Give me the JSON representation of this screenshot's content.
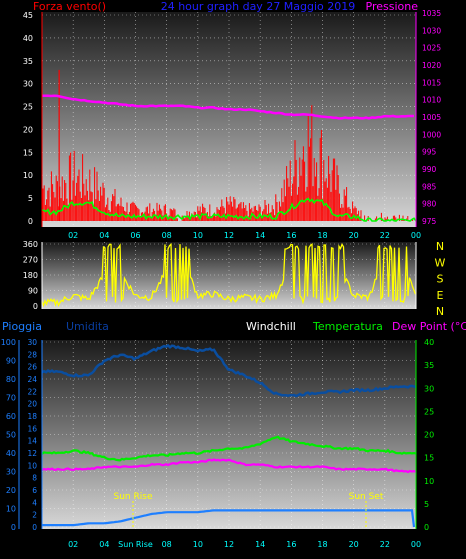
{
  "header": {
    "left_label": "Forza vento()",
    "center_label": "24 hour graph day  27 Maggio 2019",
    "right_label": "Pressione"
  },
  "colors": {
    "background": "#000000",
    "wind": "#ff0000",
    "gust": "#00ff00",
    "pressure": "#ff00ff",
    "direction": "#ffff00",
    "humidity": "#0a4ea0",
    "rain": "#1e7fff",
    "temperature": "#00ee00",
    "dewpoint": "#ff00ff",
    "windchill": "#ffffff",
    "time_ticks": "#00ffff"
  },
  "time_ticks": [
    "02",
    "04",
    "06",
    "08",
    "10",
    "12",
    "14",
    "16",
    "18",
    "20",
    "22",
    "00"
  ],
  "panel1": {
    "left_axis": [
      "45",
      "40",
      "35",
      "30",
      "25",
      "20",
      "15",
      "10",
      "5",
      "0"
    ],
    "right_axis": [
      "1035",
      "1030",
      "1025",
      "1020",
      "1015",
      "1010",
      "1005",
      "1000",
      "995",
      "990",
      "985",
      "980",
      "975"
    ]
  },
  "panel2": {
    "left_axis": [
      "360",
      "270",
      "180",
      "90",
      "0"
    ],
    "compass": [
      "N",
      "W",
      "S",
      "E",
      "N"
    ]
  },
  "panel3": {
    "legend": {
      "rain": "Pioggia",
      "humidity": "Umidita",
      "windchill": "Windchill",
      "temperature": "Temperatura",
      "dewpoint": "Dew Point (°C)"
    },
    "rain_axis": [
      "100",
      "90",
      "80",
      "70",
      "60",
      "50",
      "40",
      "30",
      "20",
      "10",
      "0"
    ],
    "humidity_axis": [
      "30",
      "28",
      "26",
      "24",
      "22",
      "20",
      "18",
      "16",
      "14",
      "12",
      "10",
      "8",
      "6",
      "4",
      "2",
      "0"
    ],
    "temp_axis": [
      "40",
      "35",
      "30",
      "25",
      "20",
      "15",
      "10",
      "5",
      "0"
    ],
    "sun_rise": "Sun Rise",
    "sun_set": "Sun Set",
    "bottom_ticks": [
      "02",
      "04",
      "Sun Rise",
      "08",
      "10",
      "12",
      "14",
      "16",
      "18",
      "20",
      "22",
      "00"
    ]
  },
  "chart_data": [
    {
      "type": "line",
      "title": "24 hour graph day  27 Maggio 2019",
      "xlabel": "",
      "ylabel": "Forza vento()",
      "ylabel_right": "Pressione",
      "x": [
        "01",
        "02",
        "03",
        "04",
        "05",
        "06",
        "07",
        "08",
        "09",
        "10",
        "11",
        "12",
        "13",
        "14",
        "15",
        "16",
        "17",
        "18",
        "19",
        "20",
        "21",
        "22",
        "23",
        "00"
      ],
      "ylim": [
        0,
        45
      ],
      "ylim_right": [
        975,
        1035
      ],
      "series": [
        {
          "axis": "left",
          "values": [
            6,
            8,
            7,
            5,
            3,
            2,
            2,
            2,
            1,
            2,
            2,
            3,
            2,
            2,
            3,
            8,
            15,
            11,
            6,
            2,
            1,
            1,
            1,
            1
          ]
        },
        {
          "axis": "left",
          "values": [
            2,
            4,
            4,
            2,
            1,
            1,
            1,
            1,
            1,
            1,
            1,
            1,
            1,
            1,
            1,
            3,
            5,
            4,
            1,
            1,
            0,
            0,
            0,
            0
          ]
        },
        {
          "axis": "right",
          "values": [
            1011.5,
            1010.5,
            1010,
            1009.5,
            1009,
            1008.5,
            1008.5,
            1008.5,
            1008.5,
            1008,
            1008,
            1007.5,
            1007.5,
            1007,
            1006.5,
            1006,
            1006,
            1005.5,
            1005,
            1005,
            1005,
            1005.5,
            1005.5,
            1005.5
          ]
        }
      ]
    },
    {
      "type": "line",
      "title": "",
      "xlabel": "",
      "ylabel": "",
      "x": [
        "01",
        "02",
        "03",
        "04",
        "05",
        "06",
        "07",
        "08",
        "09",
        "10",
        "11",
        "12",
        "13",
        "14",
        "15",
        "16",
        "17",
        "18",
        "19",
        "20",
        "21",
        "22",
        "23",
        "00"
      ],
      "ylim": [
        0,
        360
      ],
      "series": [
        {
          "values": [
            20,
            60,
            40,
            180,
            200,
            60,
            50,
            200,
            280,
            60,
            70,
            40,
            50,
            40,
            60,
            260,
            250,
            300,
            240,
            60,
            50,
            300,
            330,
            40
          ]
        }
      ]
    },
    {
      "type": "line",
      "title": "",
      "xlabel": "",
      "ylabel": "Pioggia",
      "x": [
        "01",
        "02",
        "03",
        "04",
        "05",
        "06",
        "07",
        "08",
        "09",
        "10",
        "11",
        "12",
        "13",
        "14",
        "15",
        "16",
        "17",
        "18",
        "19",
        "20",
        "21",
        "22",
        "23",
        "00"
      ],
      "ylim": [
        0,
        100
      ],
      "ylim_right": [
        0,
        40
      ],
      "series": [
        {
          "name": "Pioggia",
          "axis": "left",
          "values": [
            1,
            1,
            2,
            2,
            3,
            5,
            7,
            8,
            8,
            8,
            9,
            9,
            9,
            9,
            9,
            9,
            9,
            9,
            9,
            9,
            9,
            9,
            9,
            0
          ]
        },
        {
          "name": "Umidita",
          "axis": "left",
          "values": [
            84,
            82,
            82,
            90,
            93,
            91,
            95,
            98,
            97,
            95,
            96,
            85,
            82,
            78,
            72,
            71,
            72,
            73,
            73,
            74,
            74,
            75,
            76,
            76
          ]
        },
        {
          "name": "Temperatura",
          "axis": "right",
          "values": [
            16,
            16.5,
            16,
            15,
            14.5,
            15,
            15.5,
            15.5,
            16,
            16,
            16.5,
            17,
            17,
            18,
            19.5,
            18.5,
            18,
            17.5,
            17,
            17,
            16.5,
            16.5,
            16,
            16
          ]
        },
        {
          "name": "Dew Point (°C)",
          "axis": "right",
          "values": [
            12.5,
            12.5,
            12.5,
            13,
            13,
            13,
            13.5,
            13.5,
            14,
            14,
            14.5,
            14.5,
            13.5,
            13.5,
            13,
            13,
            13,
            13,
            12.5,
            12.5,
            12.5,
            12.5,
            12,
            12
          ]
        }
      ]
    }
  ]
}
